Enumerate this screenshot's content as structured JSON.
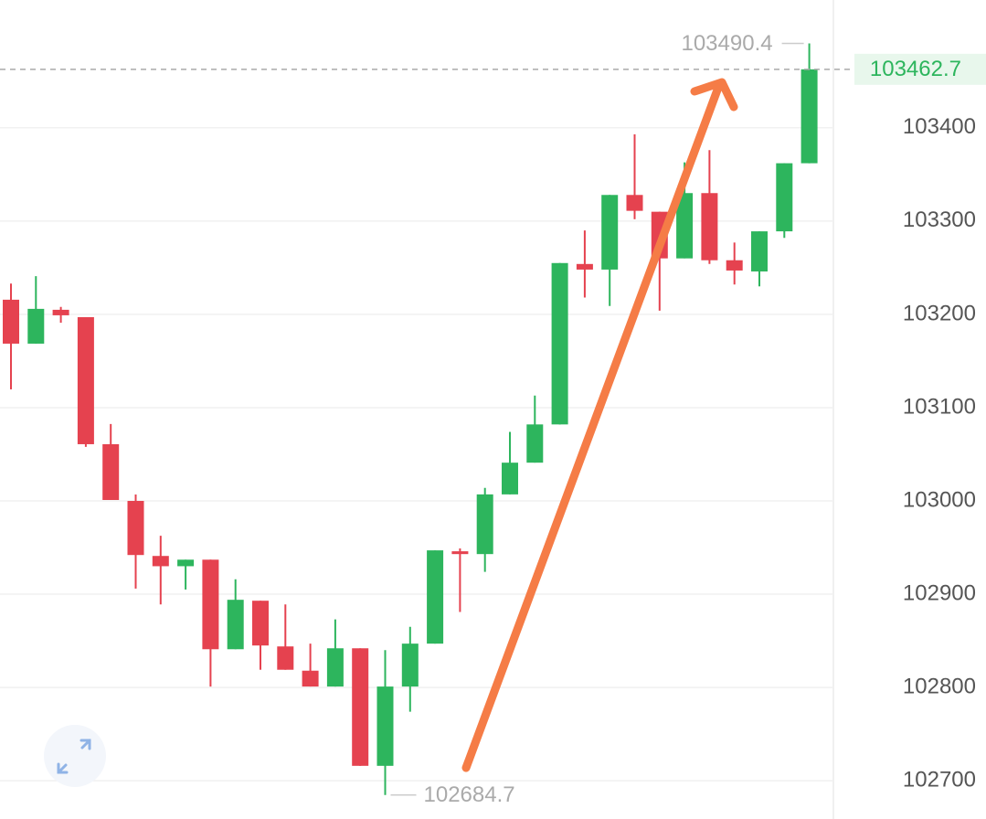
{
  "chart_data": {
    "type": "candlestick",
    "open": [
      103215.7,
      103168.6,
      103204.9,
      103197,
      103060.8,
      103000,
      102941,
      102930,
      102937,
      102841,
      102893,
      102844,
      102818,
      102801,
      102842,
      102716,
      102801,
      102847,
      102946,
      102943,
      103007,
      103041,
      103082,
      103254,
      103248,
      103328,
      103310,
      103260,
      103330,
      103258,
      103246,
      103289,
      103362
    ],
    "high": [
      103233,
      103241,
      103208,
      103197,
      103082.4,
      103006.9,
      102962.7,
      102937,
      102937,
      102916,
      102893,
      102889,
      102847,
      102873,
      102842,
      102840,
      102865,
      102947,
      102949,
      103014,
      103074,
      103113,
      103255,
      103290,
      103328,
      103393,
      103310,
      103363,
      103376,
      103277,
      103289,
      103362,
      103490.4
    ],
    "low": [
      103119.6,
      103168.6,
      103191,
      103058,
      103001,
      102906,
      102889,
      102905,
      102801,
      102841,
      102819,
      102819,
      102801,
      102801,
      102716,
      102684.7,
      102774,
      102847,
      102881,
      102924,
      103007,
      103041,
      103082,
      103218,
      103209,
      103302,
      103204,
      103260,
      103254,
      103232,
      103230,
      103282,
      103362
    ],
    "close": [
      103168.6,
      103205.9,
      103199,
      103060.8,
      103001,
      102942,
      102930,
      102937,
      102841,
      102894,
      102845,
      102819,
      102801,
      102842,
      102716,
      102801,
      102847,
      102947,
      102943,
      103007,
      103041,
      103082,
      103255,
      103248,
      103328,
      103311,
      103260,
      103330,
      103258,
      103247,
      103289,
      103362,
      103462.7
    ],
    "ylim": [
      102659,
      103537
    ],
    "yticks": [
      102700,
      102800,
      102900,
      103000,
      103100,
      103200,
      103300,
      103400
    ],
    "up_color": "#2db55d",
    "down_color": "#e5424f",
    "grid": true
  }
}
